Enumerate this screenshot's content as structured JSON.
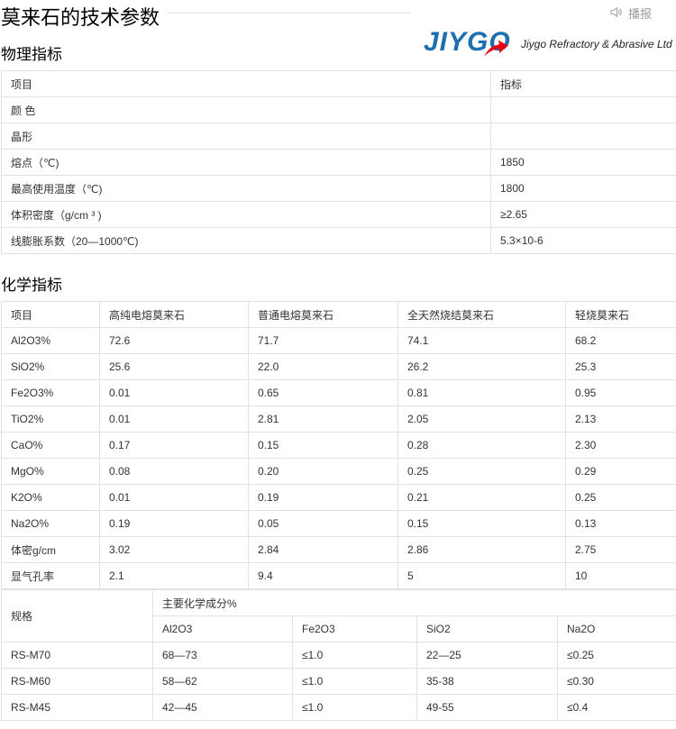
{
  "title": "莫来石的技术参数",
  "play_label": "播报",
  "physical": {
    "heading": "物理指标",
    "rows": [
      [
        "项目",
        "指标"
      ],
      [
        "颜 色",
        ""
      ],
      [
        "晶形",
        ""
      ],
      [
        "熔点（℃)",
        "1850"
      ],
      [
        "最高使用温度（℃)",
        "1800"
      ],
      [
        "体积密度（g/cm ³ )",
        "≥2.65"
      ],
      [
        "线膨胀系数（20—1000℃)",
        "5.3×10-6"
      ]
    ]
  },
  "chemical": {
    "heading": "化学指标",
    "rows": [
      [
        "项目",
        "高纯电熔莫来石",
        "普通电熔莫来石",
        "全天然烧结莫来石",
        "轻烧莫来石"
      ],
      [
        "Al2O3%",
        "72.6",
        "71.7",
        "74.1",
        "68.2"
      ],
      [
        "SiO2%",
        "25.6",
        "22.0",
        "26.2",
        "25.3"
      ],
      [
        "Fe2O3%",
        "0.01",
        "0.65",
        "0.81",
        "0.95"
      ],
      [
        "TiO2%",
        "0.01",
        "2.81",
        "2.05",
        "2.13"
      ],
      [
        "CaO%",
        "0.17",
        "0.15",
        "0.28",
        "2.30"
      ],
      [
        "MgO%",
        "0.08",
        "0.20",
        "0.25",
        "0.29"
      ],
      [
        "K2O%",
        "0.01",
        "0.19",
        "0.21",
        "0.25"
      ],
      [
        "Na2O%",
        "0.19",
        "0.05",
        "0.15",
        "0.13"
      ],
      [
        "体密g/cm",
        "3.02",
        "2.84",
        "2.86",
        "2.75"
      ],
      [
        "显气孔率",
        "2.1",
        "9.4",
        "5",
        "10"
      ]
    ]
  },
  "spec": {
    "col_header": "规格",
    "group_header": "主要化学成分%",
    "sub_headers": [
      "Al2O3",
      "Fe2O3",
      "SiO2",
      "Na2O"
    ],
    "rows": [
      [
        "RS-M70",
        "68—73",
        "≤1.0",
        "22—25",
        "≤0.25"
      ],
      [
        "RS-M60",
        "58—62",
        "≤1.0",
        "35-38",
        "≤0.30"
      ],
      [
        "RS-M45",
        "42—45",
        "≤1.0",
        "49-55",
        "≤0.4"
      ]
    ]
  },
  "logo": {
    "text": "JIYGO",
    "tagline": "Jiygo Refractory & Abrasive Ltd",
    "colors": {
      "blue": "#1f6fae",
      "red": "#e60012"
    }
  }
}
